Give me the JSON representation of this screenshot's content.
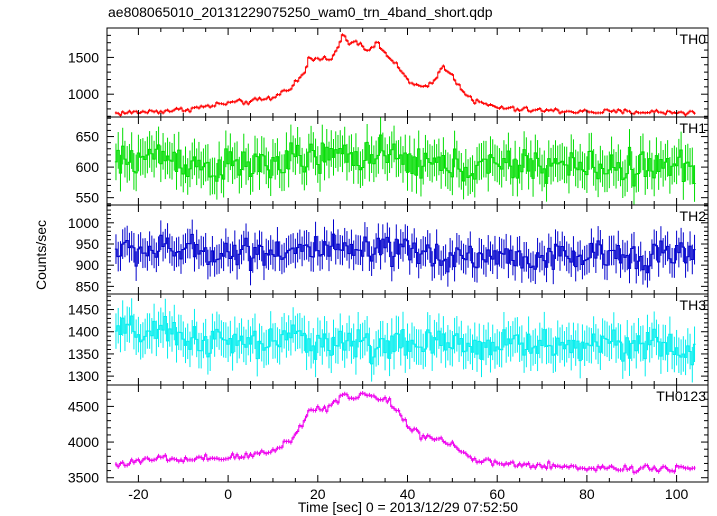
{
  "figure": {
    "title": "ae808065010_20131229075250_wam0_trn_4band_short.qdp",
    "ylabel": "Counts/sec",
    "xlabel": "Time [sec] 0 = 2013/12/29 07:52:50"
  },
  "chart_data": {
    "type": "line",
    "style": "step with error bars",
    "x_range": [
      -27,
      107
    ],
    "x_bin_width": 0.5,
    "x_ticks": [
      -20,
      0,
      20,
      40,
      60,
      80,
      100
    ],
    "grid": false,
    "panels": [
      {
        "name": "TH0",
        "color": "#ff0000",
        "ylim": [
          690,
          1900
        ],
        "y_ticks": [
          1000,
          1500
        ],
        "knots": [
          [
            -25,
            740
          ],
          [
            -20,
            755
          ],
          [
            -15,
            770
          ],
          [
            -10,
            790
          ],
          [
            -5,
            830
          ],
          [
            0,
            880
          ],
          [
            5,
            900
          ],
          [
            10,
            950
          ],
          [
            14,
            1100
          ],
          [
            17,
            1280
          ],
          [
            18,
            1480
          ],
          [
            22,
            1480
          ],
          [
            24,
            1560
          ],
          [
            25.5,
            1800
          ],
          [
            27,
            1700
          ],
          [
            29,
            1720
          ],
          [
            31,
            1600
          ],
          [
            33,
            1690
          ],
          [
            35,
            1570
          ],
          [
            38,
            1350
          ],
          [
            41,
            1140
          ],
          [
            44,
            1080
          ],
          [
            46,
            1180
          ],
          [
            48,
            1400
          ],
          [
            50,
            1240
          ],
          [
            52,
            1080
          ],
          [
            55,
            900
          ],
          [
            60,
            820
          ],
          [
            65,
            790
          ],
          [
            70,
            780
          ],
          [
            80,
            760
          ],
          [
            90,
            760
          ],
          [
            104,
            750
          ]
        ],
        "noise_sd": 25,
        "error": 20
      },
      {
        "name": "TH1",
        "color": "#00dd00",
        "ylim": [
          538,
          682
        ],
        "y_ticks": [
          550,
          600,
          650
        ],
        "knots": [
          [
            -25,
            605
          ],
          [
            -20,
            615
          ],
          [
            -15,
            620
          ],
          [
            -10,
            610
          ],
          [
            -5,
            600
          ],
          [
            0,
            600
          ],
          [
            10,
            605
          ],
          [
            20,
            615
          ],
          [
            30,
            620
          ],
          [
            40,
            610
          ],
          [
            50,
            600
          ],
          [
            60,
            600
          ],
          [
            70,
            605
          ],
          [
            80,
            600
          ],
          [
            90,
            600
          ],
          [
            104,
            600
          ]
        ],
        "noise_sd": 20,
        "error": 30
      },
      {
        "name": "TH2",
        "color": "#0000cc",
        "ylim": [
          832,
          1042
        ],
        "y_ticks": [
          850,
          900,
          950,
          1000
        ],
        "knots": [
          [
            -25,
            935
          ],
          [
            -10,
            935
          ],
          [
            0,
            930
          ],
          [
            10,
            935
          ],
          [
            20,
            935
          ],
          [
            30,
            930
          ],
          [
            40,
            930
          ],
          [
            50,
            920
          ],
          [
            60,
            920
          ],
          [
            70,
            915
          ],
          [
            80,
            920
          ],
          [
            90,
            925
          ],
          [
            104,
            925
          ]
        ],
        "noise_sd": 25,
        "error": 35
      },
      {
        "name": "TH3",
        "color": "#00eeee",
        "ylim": [
          1280,
          1485
        ],
        "y_ticks": [
          1300,
          1350,
          1400,
          1450
        ],
        "knots": [
          [
            -25,
            1400
          ],
          [
            -15,
            1395
          ],
          [
            -5,
            1380
          ],
          [
            5,
            1370
          ],
          [
            15,
            1385
          ],
          [
            25,
            1375
          ],
          [
            35,
            1370
          ],
          [
            45,
            1370
          ],
          [
            55,
            1370
          ],
          [
            65,
            1375
          ],
          [
            75,
            1365
          ],
          [
            85,
            1380
          ],
          [
            95,
            1370
          ],
          [
            104,
            1350
          ]
        ],
        "noise_sd": 25,
        "error": 40
      },
      {
        "name": "TH0123",
        "color": "#ee00ee",
        "ylim": [
          3440,
          4800
        ],
        "y_ticks": [
          3500,
          4000,
          4500
        ],
        "knots": [
          [
            -25,
            3690
          ],
          [
            -20,
            3720
          ],
          [
            -15,
            3780
          ],
          [
            -10,
            3740
          ],
          [
            -5,
            3760
          ],
          [
            0,
            3780
          ],
          [
            5,
            3810
          ],
          [
            10,
            3880
          ],
          [
            14,
            4040
          ],
          [
            17,
            4280
          ],
          [
            18,
            4450
          ],
          [
            22,
            4480
          ],
          [
            24,
            4560
          ],
          [
            26,
            4700
          ],
          [
            28,
            4580
          ],
          [
            30,
            4700
          ],
          [
            33,
            4610
          ],
          [
            36,
            4580
          ],
          [
            38,
            4420
          ],
          [
            40,
            4230
          ],
          [
            43,
            4100
          ],
          [
            47,
            4040
          ],
          [
            50,
            3980
          ],
          [
            53,
            3820
          ],
          [
            56,
            3720
          ],
          [
            60,
            3700
          ],
          [
            65,
            3680
          ],
          [
            70,
            3660
          ],
          [
            80,
            3640
          ],
          [
            90,
            3630
          ],
          [
            104,
            3640
          ]
        ],
        "noise_sd": 35,
        "error": 30
      }
    ]
  }
}
